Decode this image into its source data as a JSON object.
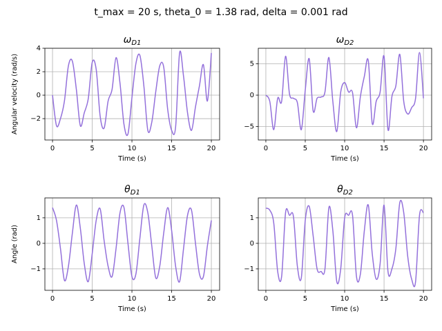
{
  "suptitle": "t_max = 20 s, theta_0 = 1.38 rad, delta = 0.001 rad",
  "chart_data": [
    {
      "type": "line",
      "title": "ω",
      "title_subscript": "D1",
      "xlabel": "Time (s)",
      "ylabel": "Angular velocity (rad/s)",
      "x": [
        0,
        0.5,
        1,
        1.5,
        2,
        2.5,
        3,
        3.5,
        4,
        4.5,
        5,
        5.5,
        6,
        6.5,
        7,
        7.5,
        8,
        8.5,
        9,
        9.5,
        10,
        10.5,
        11,
        11.5,
        12,
        12.5,
        13,
        13.5,
        14,
        14.5,
        15,
        15.5,
        16,
        16.5,
        17,
        17.5,
        18,
        18.5,
        19,
        19.5,
        20
      ],
      "series": [
        {
          "color": "#9370db",
          "values": [
            0,
            -2.6,
            -2.0,
            -0.5,
            2.5,
            2.9,
            0.5,
            -2.6,
            -1.5,
            -0.3,
            2.8,
            2.2,
            -1.8,
            -2.8,
            -0.5,
            0.5,
            3.2,
            1.0,
            -2.5,
            -3.3,
            -0.2,
            2.7,
            3.4,
            0.8,
            -3.0,
            -2.3,
            0.3,
            2.5,
            2.4,
            -1.2,
            -3.0,
            -2.7,
            3.6,
            1.6,
            -1.5,
            -3.0,
            -1.0,
            0.8,
            2.6,
            -0.5,
            3.6
          ]
        }
      ],
      "xlim": [
        -0.96,
        21.04
      ],
      "xticks": [
        0,
        5,
        10,
        15,
        20
      ],
      "ylim": [
        -3.82,
        4
      ],
      "yticks": [
        {
          "value": -2,
          "label": "−2"
        },
        0,
        2,
        4
      ],
      "grid": true
    },
    {
      "type": "line",
      "title": "ω",
      "title_subscript": "D2",
      "xlabel": "Time (s)",
      "x": [
        0,
        0.5,
        1,
        1.5,
        2,
        2.5,
        3,
        3.5,
        4,
        4.5,
        5,
        5.5,
        6,
        6.5,
        7,
        7.5,
        8,
        8.5,
        9,
        9.5,
        10,
        10.5,
        11,
        11.5,
        12,
        12.5,
        13,
        13.5,
        14,
        14.5,
        15,
        15.5,
        16,
        16.5,
        17,
        17.5,
        18,
        18.5,
        19,
        19.5,
        20
      ],
      "series": [
        {
          "color": "#9370db",
          "values": [
            0,
            -1.0,
            -5.5,
            -0.5,
            -1.0,
            6.2,
            0.2,
            -0.5,
            -1.2,
            -5.5,
            0.8,
            5.8,
            -2.5,
            -0.5,
            -0.3,
            0.5,
            6.0,
            -1.0,
            -5.8,
            0.5,
            2.0,
            0.5,
            0.4,
            -5.2,
            -0.2,
            3.0,
            5.5,
            -4.5,
            -1.0,
            0.5,
            6.2,
            -5.5,
            -0.2,
            1.5,
            6.5,
            -1.0,
            -3.0,
            -2.0,
            -0.5,
            6.8,
            -0.5
          ]
        }
      ],
      "xlim": [
        -0.96,
        21.04
      ],
      "xticks": [
        0,
        5,
        10,
        15,
        20
      ],
      "ylim": [
        -7.14,
        7.47
      ],
      "yticks": [
        {
          "value": -5,
          "label": "−5"
        },
        0,
        5
      ],
      "grid": true
    },
    {
      "type": "line",
      "title": "θ",
      "title_subscript": "D1",
      "xlabel": "Time (s)",
      "ylabel": "Angle (rad)",
      "x": [
        0,
        0.5,
        1,
        1.5,
        2,
        2.5,
        3,
        3.5,
        4,
        4.5,
        5,
        5.5,
        6,
        6.5,
        7,
        7.5,
        8,
        8.5,
        9,
        9.5,
        10,
        10.5,
        11,
        11.5,
        12,
        12.5,
        13,
        13.5,
        14,
        14.5,
        15,
        15.5,
        16,
        16.5,
        17,
        17.5,
        18,
        18.5,
        19,
        19.5,
        20
      ],
      "series": [
        {
          "color": "#9370db",
          "values": [
            1.4,
            0.9,
            -0.2,
            -1.45,
            -0.9,
            0.4,
            1.5,
            0.6,
            -0.8,
            -1.5,
            -0.4,
            0.9,
            1.35,
            0.1,
            -0.9,
            -1.3,
            -0.2,
            1.2,
            1.4,
            0.0,
            -1.3,
            -1.2,
            0.2,
            1.5,
            1.2,
            -0.1,
            -1.35,
            -0.9,
            0.4,
            1.4,
            0.5,
            -0.9,
            -1.5,
            -0.2,
            1.1,
            1.3,
            0.0,
            -1.2,
            -1.3,
            -0.1,
            0.9
          ]
        }
      ],
      "xlim": [
        -0.96,
        21.04
      ],
      "xticks": [
        0,
        5,
        10,
        15,
        20
      ],
      "ylim": [
        -1.84,
        1.78
      ],
      "yticks": [
        {
          "value": -1,
          "label": "−1"
        },
        0,
        1
      ],
      "grid": true
    },
    {
      "type": "line",
      "title": "θ",
      "title_subscript": "D2",
      "xlabel": "Time (s)",
      "x": [
        0,
        0.5,
        1,
        1.5,
        2,
        2.5,
        3,
        3.5,
        4,
        4.5,
        5,
        5.5,
        6,
        6.5,
        7,
        7.5,
        8,
        8.5,
        9,
        9.5,
        10,
        10.5,
        11,
        11.5,
        12,
        12.5,
        13,
        13.5,
        14,
        14.5,
        15,
        15.5,
        16,
        16.5,
        17,
        17.5,
        18,
        18.5,
        19,
        19.5,
        20
      ],
      "series": [
        {
          "color": "#9370db",
          "values": [
            1.38,
            1.3,
            0.8,
            -1.1,
            -1.3,
            1.2,
            1.1,
            1.05,
            -0.9,
            -1.35,
            0.9,
            1.45,
            0.3,
            -1.0,
            -1.1,
            -1.0,
            1.4,
            0.5,
            -1.5,
            -1.0,
            1.0,
            1.1,
            1.1,
            -1.3,
            -1.2,
            0.5,
            1.5,
            -0.4,
            -1.4,
            -0.8,
            1.5,
            -1.1,
            -1.0,
            -0.2,
            1.6,
            1.2,
            -0.5,
            -1.4,
            -1.5,
            1.1,
            1.2
          ]
        }
      ],
      "xlim": [
        -0.96,
        21.04
      ],
      "xticks": [
        0,
        5,
        10,
        15,
        20
      ],
      "ylim": [
        -1.84,
        1.78
      ],
      "yticks": [
        {
          "value": -1,
          "label": "−1"
        },
        0,
        1
      ],
      "grid": true
    }
  ]
}
